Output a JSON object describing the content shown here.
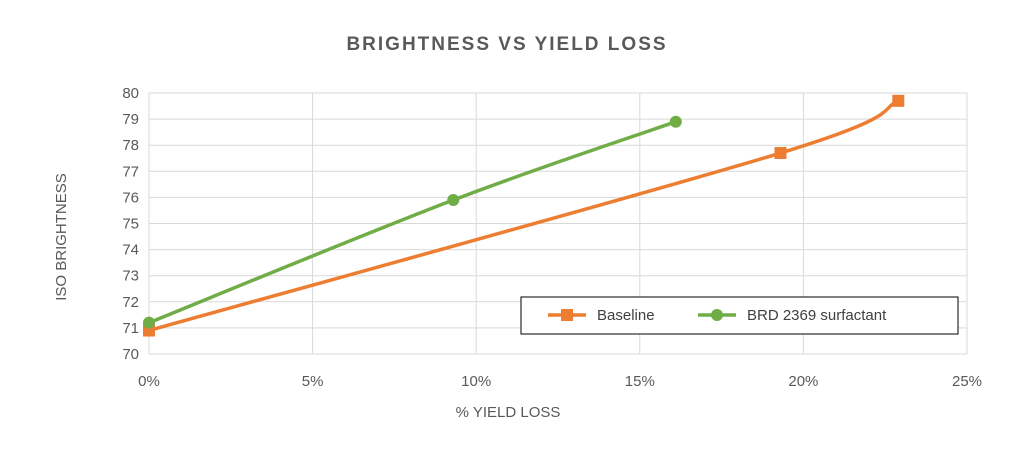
{
  "chart_data": {
    "type": "line",
    "title": "BRIGHTNESS VS YIELD LOSS",
    "xlabel": "% YIELD LOSS",
    "ylabel": "ISO BRIGHTNESS",
    "xlim": [
      0,
      25
    ],
    "ylim": [
      70,
      80
    ],
    "x_ticks": [
      0,
      5,
      10,
      15,
      20,
      25
    ],
    "x_tick_labels": [
      "0%",
      "5%",
      "10%",
      "15%",
      "20%",
      "25%"
    ],
    "y_ticks": [
      70,
      71,
      72,
      73,
      74,
      75,
      76,
      77,
      78,
      79,
      80
    ],
    "y_tick_labels": [
      "70",
      "71",
      "72",
      "73",
      "74",
      "75",
      "76",
      "77",
      "78",
      "79",
      "80"
    ],
    "grid": true,
    "legend_position": "bottom-right",
    "series": [
      {
        "name": "Baseline",
        "color": "#ED7D31",
        "marker": "square",
        "x": [
          0,
          19.3,
          22.9
        ],
        "y": [
          70.9,
          77.7,
          79.7
        ]
      },
      {
        "name": "BRD 2369 surfactant",
        "color": "#70AD47",
        "marker": "circle",
        "x": [
          0,
          9.3,
          16.1
        ],
        "y": [
          71.2,
          75.9,
          78.9
        ]
      }
    ]
  }
}
